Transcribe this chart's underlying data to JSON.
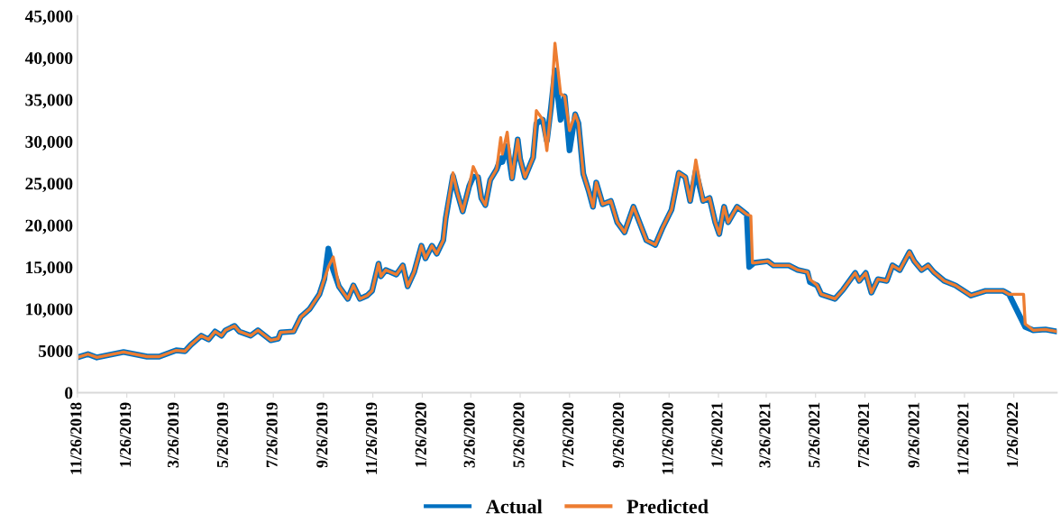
{
  "chart_data": {
    "type": "line",
    "legend": "bottom",
    "grid": false,
    "marker": "none",
    "line_style": "solid",
    "xlim": [
      "2018-11-26",
      "2022-03-20"
    ],
    "xticks": [
      {
        "value": "2018-11-26",
        "label": "11/26/2018"
      },
      {
        "value": "2019-01-26",
        "label": "1/26/2019"
      },
      {
        "value": "2019-03-26",
        "label": "3/26/2019"
      },
      {
        "value": "2019-05-26",
        "label": "5/26/2019"
      },
      {
        "value": "2019-07-26",
        "label": "7/26/2019"
      },
      {
        "value": "2019-09-26",
        "label": "9/26/2019"
      },
      {
        "value": "2019-11-26",
        "label": "11/26/2019"
      },
      {
        "value": "2020-01-26",
        "label": "1/26/2020"
      },
      {
        "value": "2020-03-26",
        "label": "3/26/2020"
      },
      {
        "value": "2020-05-26",
        "label": "5/26/2020"
      },
      {
        "value": "2020-07-26",
        "label": "7/26/2020"
      },
      {
        "value": "2020-09-26",
        "label": "9/26/2020"
      },
      {
        "value": "2020-11-26",
        "label": "11/26/2020"
      },
      {
        "value": "2021-01-26",
        "label": "1/26/2021"
      },
      {
        "value": "2021-03-26",
        "label": "3/26/2021"
      },
      {
        "value": "2021-05-26",
        "label": "5/26/2021"
      },
      {
        "value": "2021-07-26",
        "label": "7/26/2021"
      },
      {
        "value": "2021-09-26",
        "label": "9/26/2021"
      },
      {
        "value": "2021-11-26",
        "label": "11/26/2021"
      },
      {
        "value": "2022-01-26",
        "label": "1/26/2022"
      }
    ],
    "ylim": [
      0,
      45000
    ],
    "yticks": [
      0,
      5000,
      {
        "value": 10000,
        "label": "10,000"
      },
      {
        "value": 15000,
        "label": "15,000"
      },
      {
        "value": 20000,
        "label": "20,000"
      },
      {
        "value": 25000,
        "label": "25,000"
      },
      {
        "value": 30000,
        "label": "30,000"
      },
      {
        "value": 35000,
        "label": "35,000"
      },
      {
        "value": 40000,
        "label": "40,000"
      },
      {
        "value": 45000,
        "label": "45,000"
      }
    ],
    "series": [
      {
        "name": "Actual",
        "color": "#0070c0",
        "x": [
          "2018-11-26",
          "2018-12-09",
          "2018-12-20",
          "2019-01-22",
          "2019-02-20",
          "2019-03-07",
          "2019-03-28",
          "2019-04-08",
          "2019-04-15",
          "2019-04-28",
          "2019-05-07",
          "2019-05-15",
          "2019-05-23",
          "2019-05-28",
          "2019-06-08",
          "2019-06-14",
          "2019-06-28",
          "2019-07-07",
          "2019-07-23",
          "2019-08-01",
          "2019-08-04",
          "2019-08-20",
          "2019-08-29",
          "2019-09-09",
          "2019-09-21",
          "2019-09-27",
          "2019-10-02",
          "2019-10-08",
          "2019-10-15",
          "2019-10-26",
          "2019-11-02",
          "2019-11-10",
          "2019-11-19",
          "2019-11-25",
          "2019-12-03",
          "2019-12-06",
          "2019-12-12",
          "2019-12-25",
          "2020-01-02",
          "2020-01-08",
          "2020-01-16",
          "2020-01-25",
          "2020-01-30",
          "2020-02-07",
          "2020-02-13",
          "2020-02-21",
          "2020-02-24",
          "2020-03-04",
          "2020-03-09",
          "2020-03-16",
          "2020-03-24",
          "2020-03-29",
          "2020-04-04",
          "2020-04-08",
          "2020-04-13",
          "2020-04-19",
          "2020-04-27",
          "2020-05-02",
          "2020-05-04",
          "2020-05-10",
          "2020-05-16",
          "2020-05-23",
          "2020-05-26",
          "2020-06-01",
          "2020-06-11",
          "2020-06-15",
          "2020-06-23",
          "2020-06-28",
          "2020-07-03",
          "2020-07-08",
          "2020-07-15",
          "2020-07-20",
          "2020-07-26",
          "2020-08-02",
          "2020-08-06",
          "2020-08-12",
          "2020-08-19",
          "2020-08-24",
          "2020-08-28",
          "2020-09-05",
          "2020-09-15",
          "2020-09-23",
          "2020-10-02",
          "2020-10-13",
          "2020-10-29",
          "2020-11-09",
          "2020-11-18",
          "2020-11-29",
          "2020-12-08",
          "2020-12-16",
          "2020-12-22",
          "2020-12-29",
          "2021-01-07",
          "2021-01-15",
          "2021-01-22",
          "2021-01-27",
          "2021-02-02",
          "2021-02-07",
          "2021-02-18",
          "2021-03-02",
          "2021-03-05",
          "2021-03-11",
          "2021-03-28",
          "2021-04-04",
          "2021-04-23",
          "2021-05-04",
          "2021-05-16",
          "2021-05-19",
          "2021-05-28",
          "2021-06-02",
          "2021-06-19",
          "2021-06-29",
          "2021-07-14",
          "2021-07-19",
          "2021-07-27",
          "2021-08-03",
          "2021-08-11",
          "2021-08-22",
          "2021-08-29",
          "2021-09-07",
          "2021-09-19",
          "2021-09-25",
          "2021-10-04",
          "2021-10-12",
          "2021-10-19",
          "2021-11-01",
          "2021-11-15",
          "2021-12-04",
          "2021-12-22",
          "2022-01-13",
          "2022-01-20",
          "2022-02-09",
          "2022-02-19",
          "2022-03-06",
          "2022-03-20"
        ],
        "values": [
          4200,
          4600,
          4200,
          4850,
          4300,
          4300,
          5050,
          4950,
          5700,
          6800,
          6350,
          7300,
          6800,
          7450,
          7970,
          7300,
          6800,
          7450,
          6250,
          6450,
          7200,
          7300,
          9050,
          10000,
          11750,
          13550,
          17200,
          14650,
          12700,
          11200,
          12800,
          11200,
          11600,
          12150,
          15400,
          13900,
          14650,
          14100,
          15200,
          12700,
          14400,
          17550,
          16050,
          17550,
          16600,
          18200,
          20800,
          25900,
          24000,
          21650,
          24650,
          25800,
          25750,
          23250,
          22400,
          25400,
          26700,
          28000,
          27550,
          29450,
          25600,
          30250,
          27900,
          25750,
          28100,
          32150,
          32600,
          30050,
          34000,
          38500,
          32600,
          35400,
          28950,
          33250,
          32200,
          26150,
          24000,
          22200,
          25100,
          22500,
          22900,
          20350,
          19150,
          22200,
          18200,
          17650,
          19700,
          21850,
          26250,
          25750,
          22900,
          26500,
          22900,
          23250,
          20350,
          18950,
          22200,
          20350,
          22200,
          21300,
          15000,
          15500,
          15700,
          15200,
          15200,
          14650,
          14400,
          13200,
          12800,
          11750,
          11200,
          12300,
          14300,
          13350,
          14300,
          11950,
          13550,
          13350,
          15200,
          14650,
          16800,
          15700,
          14650,
          15200,
          14400,
          13350,
          12800,
          11600,
          12150,
          12150,
          11750,
          7850,
          7450,
          7550,
          7300
        ]
      },
      {
        "name": "Predicted",
        "color": "#ed7d31",
        "x": [
          "2018-11-26",
          "2018-12-09",
          "2018-12-20",
          "2019-01-22",
          "2019-02-20",
          "2019-03-07",
          "2019-03-28",
          "2019-04-08",
          "2019-04-15",
          "2019-04-28",
          "2019-05-07",
          "2019-05-15",
          "2019-05-23",
          "2019-05-28",
          "2019-06-08",
          "2019-06-14",
          "2019-06-28",
          "2019-07-07",
          "2019-07-23",
          "2019-08-01",
          "2019-08-04",
          "2019-08-20",
          "2019-08-29",
          "2019-09-09",
          "2019-09-21",
          "2019-09-27",
          "2019-10-02",
          "2019-10-08",
          "2019-10-15",
          "2019-10-26",
          "2019-11-02",
          "2019-11-10",
          "2019-11-19",
          "2019-11-25",
          "2019-12-03",
          "2019-12-06",
          "2019-12-12",
          "2019-12-25",
          "2020-01-02",
          "2020-01-08",
          "2020-01-16",
          "2020-01-25",
          "2020-01-30",
          "2020-02-07",
          "2020-02-13",
          "2020-02-21",
          "2020-02-24",
          "2020-03-04",
          "2020-03-09",
          "2020-03-16",
          "2020-03-24",
          "2020-03-29",
          "2020-04-04",
          "2020-04-08",
          "2020-04-13",
          "2020-04-19",
          "2020-04-27",
          "2020-05-02",
          "2020-05-04",
          "2020-05-10",
          "2020-05-16",
          "2020-05-23",
          "2020-05-26",
          "2020-06-01",
          "2020-06-11",
          "2020-06-15",
          "2020-06-23",
          "2020-06-28",
          "2020-07-03",
          "2020-07-08",
          "2020-07-15",
          "2020-07-20",
          "2020-07-26",
          "2020-08-02",
          "2020-08-06",
          "2020-08-12",
          "2020-08-19",
          "2020-08-24",
          "2020-08-28",
          "2020-09-05",
          "2020-09-15",
          "2020-09-23",
          "2020-10-02",
          "2020-10-13",
          "2020-10-29",
          "2020-11-09",
          "2020-11-18",
          "2020-11-29",
          "2020-12-08",
          "2020-12-16",
          "2020-12-22",
          "2020-12-29",
          "2021-01-07",
          "2021-01-15",
          "2021-01-22",
          "2021-01-27",
          "2021-02-02",
          "2021-02-07",
          "2021-02-18",
          "2021-03-02",
          "2021-03-07",
          "2021-03-09",
          "2021-03-11",
          "2021-03-28",
          "2021-04-04",
          "2021-04-23",
          "2021-05-04",
          "2021-05-16",
          "2021-05-19",
          "2021-05-28",
          "2021-06-02",
          "2021-06-19",
          "2021-06-29",
          "2021-07-14",
          "2021-07-19",
          "2021-07-27",
          "2021-08-03",
          "2021-08-11",
          "2021-08-22",
          "2021-08-29",
          "2021-09-07",
          "2021-09-19",
          "2021-09-25",
          "2021-10-04",
          "2021-10-12",
          "2021-10-19",
          "2021-11-01",
          "2021-11-15",
          "2021-12-04",
          "2021-12-22",
          "2022-01-13",
          "2022-01-20",
          "2022-02-07",
          "2022-02-09",
          "2022-02-19",
          "2022-03-06",
          "2022-03-20"
        ],
        "values": [
          4200,
          4600,
          4200,
          4850,
          4300,
          4300,
          5050,
          4950,
          5700,
          6800,
          6350,
          7300,
          6800,
          7450,
          7970,
          7300,
          6800,
          7450,
          6250,
          6450,
          7200,
          7300,
          9050,
          10000,
          11750,
          13550,
          15000,
          16200,
          12700,
          11200,
          12800,
          11200,
          11600,
          12150,
          15400,
          13900,
          14650,
          14100,
          15200,
          12700,
          14400,
          17550,
          16050,
          17550,
          16600,
          18200,
          20800,
          26250,
          24000,
          21650,
          24650,
          27000,
          25750,
          23250,
          22400,
          25400,
          26700,
          30450,
          28500,
          31100,
          25600,
          30250,
          27900,
          25750,
          28100,
          33700,
          32600,
          28900,
          34000,
          41750,
          35700,
          35400,
          31300,
          33250,
          32200,
          26150,
          24000,
          22200,
          25100,
          22500,
          22900,
          20350,
          19150,
          22200,
          18200,
          17650,
          19700,
          21850,
          26250,
          25750,
          22900,
          27800,
          22900,
          23250,
          20350,
          18950,
          22200,
          20350,
          22200,
          21300,
          21100,
          15500,
          15500,
          15700,
          15200,
          15200,
          14650,
          14400,
          13550,
          12800,
          11750,
          11200,
          12300,
          14300,
          13350,
          14300,
          11950,
          13550,
          13350,
          15200,
          14650,
          16800,
          15700,
          14650,
          15200,
          14400,
          13350,
          12800,
          11600,
          12150,
          12150,
          11750,
          11750,
          8200,
          7450,
          7550,
          7300
        ]
      }
    ]
  }
}
